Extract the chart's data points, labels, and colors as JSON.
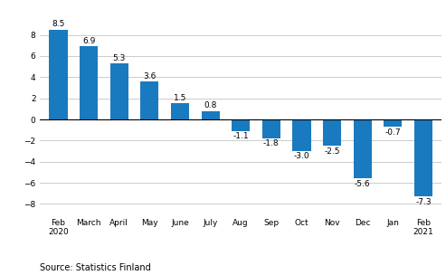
{
  "categories": [
    "Feb\n2020",
    "March",
    "April",
    "May",
    "June",
    "July",
    "Aug",
    "Sep",
    "Oct",
    "Nov",
    "Dec",
    "Jan",
    "Feb\n2021"
  ],
  "values": [
    8.5,
    6.9,
    5.3,
    3.6,
    1.5,
    0.8,
    -1.1,
    -1.8,
    -3.0,
    -2.5,
    -5.6,
    -0.7,
    -7.3
  ],
  "bar_color": "#1a7abf",
  "ylim": [
    -9,
    10
  ],
  "yticks": [
    -8,
    -6,
    -4,
    -2,
    0,
    2,
    4,
    6,
    8
  ],
  "source_text": "Source: Statistics Finland",
  "background_color": "#ffffff",
  "grid_color": "#cccccc",
  "tick_fontsize": 6.5,
  "source_fontsize": 7.0,
  "bar_label_fontsize": 6.5,
  "bar_width": 0.6
}
